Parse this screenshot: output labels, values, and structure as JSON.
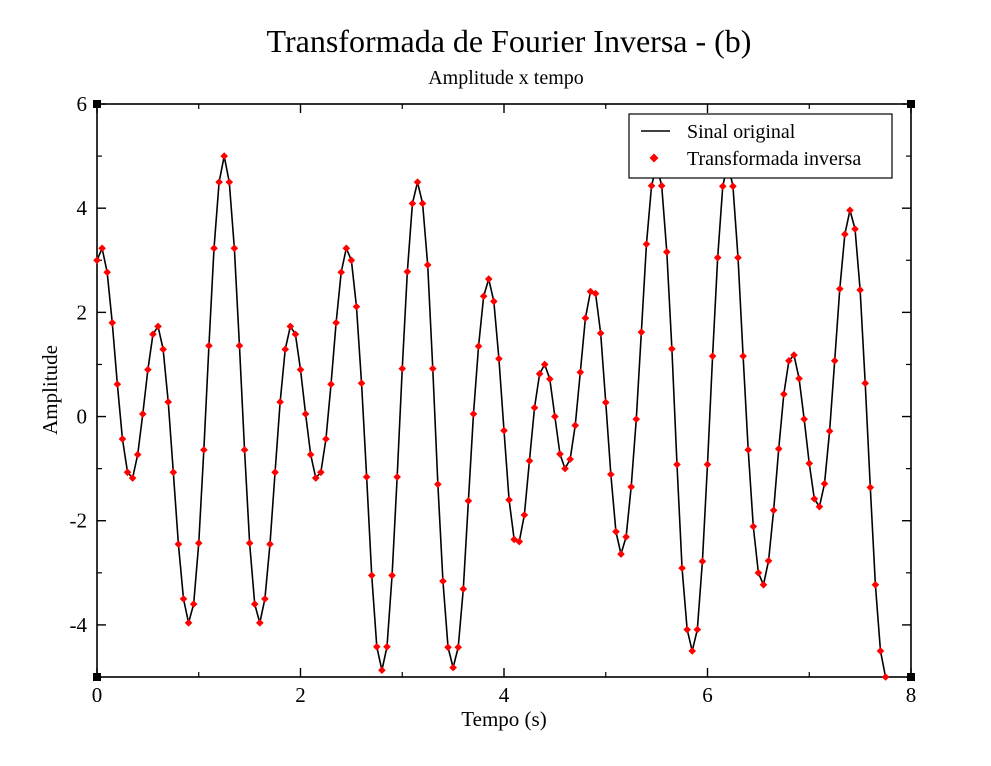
{
  "chart_data": {
    "type": "line",
    "title": "Transformada de Fourier Inversa - (b)",
    "subtitle": "Amplitude x tempo",
    "xlabel": "Tempo (s)",
    "ylabel": "Amplitude",
    "xlim": [
      0,
      8
    ],
    "ylim": [
      -5,
      6
    ],
    "xticks": [
      0,
      2,
      4,
      6,
      8
    ],
    "yticks": [
      -4,
      -2,
      0,
      2,
      4,
      6
    ],
    "x_minor_step": 1,
    "y_minor_step": 1,
    "grid": false,
    "legend_position": "top-right",
    "sample_step": 0.05,
    "series": [
      {
        "name": "Sinal original",
        "style": "line",
        "color": "#000000",
        "y": [
          3.0,
          3.23,
          2.77,
          1.8,
          0.62,
          -0.43,
          -1.07,
          -1.18,
          -0.73,
          0.05,
          0.9,
          1.58,
          1.73,
          1.29,
          0.28,
          -1.07,
          -2.45,
          -3.5,
          -3.96,
          -3.6,
          -2.43,
          -0.64,
          1.36,
          3.23,
          4.5,
          5.0,
          4.5,
          3.23,
          1.36,
          -0.64,
          -2.43,
          -3.6,
          -3.96,
          -3.5,
          -2.45,
          -1.07,
          0.28,
          1.29,
          1.73,
          1.58,
          0.9,
          0.05,
          -0.73,
          -1.18,
          -1.07,
          -0.43,
          0.62,
          1.8,
          2.77,
          3.23,
          3.0,
          2.11,
          0.64,
          -1.16,
          -3.05,
          -4.42,
          -4.87,
          -4.42,
          -3.05,
          -1.16,
          0.92,
          2.78,
          4.09,
          4.5,
          4.09,
          2.91,
          0.92,
          -1.3,
          -3.16,
          -4.43,
          -4.82,
          -4.43,
          -3.31,
          -1.62,
          0.05,
          1.35,
          2.31,
          2.64,
          2.21,
          1.11,
          -0.27,
          -1.6,
          -2.36,
          -2.4,
          -1.89,
          -0.85,
          0.17,
          0.82,
          1.0,
          0.72,
          0.0,
          -0.72,
          -1.0,
          -0.82,
          -0.17,
          0.85,
          1.89,
          2.4,
          2.36,
          1.6,
          0.27,
          -1.11,
          -2.21,
          -2.64,
          -2.31,
          -1.35,
          -0.05,
          1.62,
          3.31,
          4.43,
          4.82,
          4.43,
          3.16,
          1.3,
          -0.92,
          -2.91,
          -4.09,
          -4.5,
          -4.09,
          -2.78,
          -0.92,
          1.16,
          3.05,
          4.42,
          4.87,
          4.42,
          3.05,
          1.16,
          -0.64,
          -2.11,
          -3.0,
          -3.23,
          -2.77,
          -1.8,
          -0.62,
          0.43,
          1.07,
          1.18,
          0.73,
          -0.05,
          -0.9,
          -1.58,
          -1.73,
          -1.29,
          -0.28,
          1.07,
          2.45,
          3.5,
          3.96,
          3.6,
          2.43,
          0.64,
          -1.36,
          -3.23,
          -4.5,
          -5.0
        ]
      },
      {
        "name": "Transformada inversa",
        "style": "markers",
        "marker": "diamond",
        "color": "#ff0000"
      }
    ]
  }
}
